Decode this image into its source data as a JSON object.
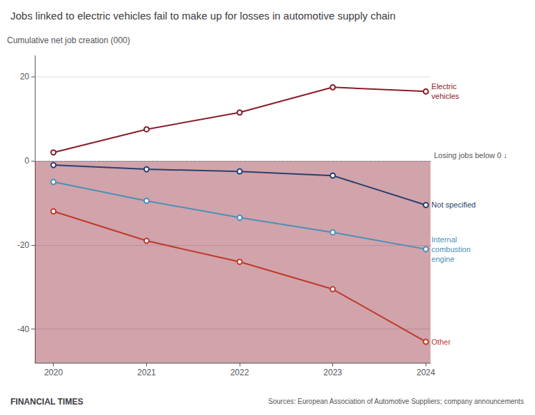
{
  "chart_data": {
    "type": "line",
    "title": "Jobs linked to electric vehicles fail to make up for losses in automotive supply chain",
    "ylabel": "Cumulative net job creation (000)",
    "annotation": "Losing jobs below 0 ↓",
    "credit": "FINANCIAL TIMES",
    "source": "Sources: European Association of Automotive Suppliers; company announcements",
    "x": [
      2020,
      2021,
      2022,
      2023,
      2024
    ],
    "xlim": [
      2019.8,
      2024.05
    ],
    "xticks": [
      2020,
      2021,
      2022,
      2023,
      2024
    ],
    "ylim": [
      -48,
      25
    ],
    "yticks": [
      -40,
      -20,
      0,
      20
    ],
    "grid": true,
    "marker": "circle",
    "series": [
      {
        "name": "Electric\nvehicles",
        "color": "#8b1a2a",
        "values": [
          2.0,
          7.5,
          11.5,
          17.5,
          16.5
        ]
      },
      {
        "name": "Not specified",
        "color": "#2a3f6f",
        "values": [
          -1.0,
          -2.0,
          -2.5,
          -3.5,
          -10.5
        ]
      },
      {
        "name": "Internal\ncombustion\nengine",
        "color": "#4a90b8",
        "values": [
          -5.0,
          -9.5,
          -13.5,
          -17.0,
          -21.0
        ]
      },
      {
        "name": "Other",
        "color": "#c0392b",
        "values": [
          -12.0,
          -19.0,
          -24.0,
          -30.5,
          -43.0
        ]
      }
    ]
  }
}
